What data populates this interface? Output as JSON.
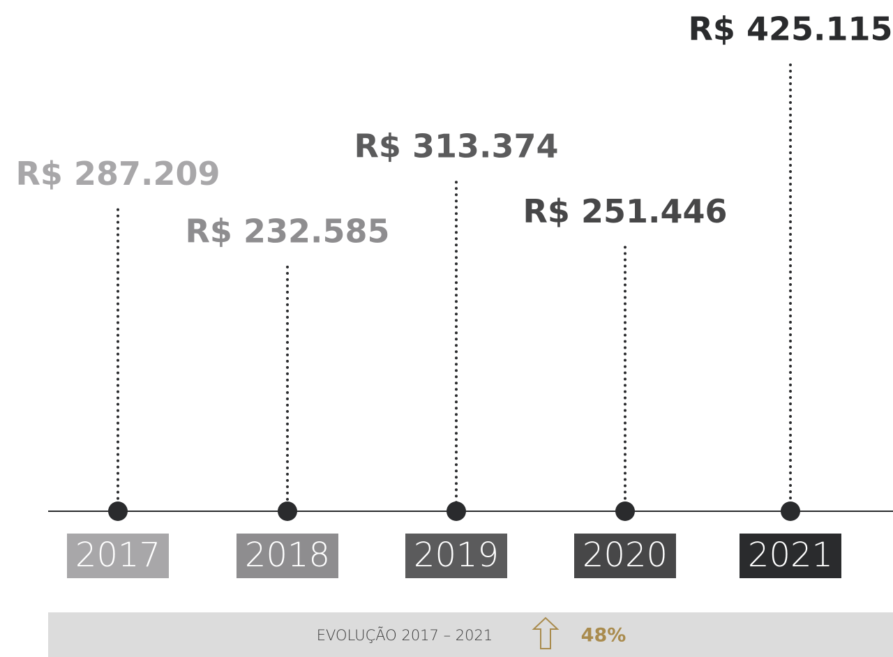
{
  "chart_data": {
    "type": "lollipop",
    "categories": [
      "2017",
      "2018",
      "2019",
      "2020",
      "2021"
    ],
    "values": [
      287209,
      232585,
      313374,
      251446,
      425115
    ],
    "value_labels": [
      "R$ 287.209",
      "R$ 232.585",
      "R$ 313.374",
      "R$ 251.446",
      "R$ 425.115"
    ],
    "colors": [
      "#a8a7a9",
      "#8e8d8f",
      "#5b5b5c",
      "#474748",
      "#2a2b2d"
    ],
    "annotations": [
      "EVOLUÇÃO 2017 – 2021",
      "48%"
    ]
  }
}
